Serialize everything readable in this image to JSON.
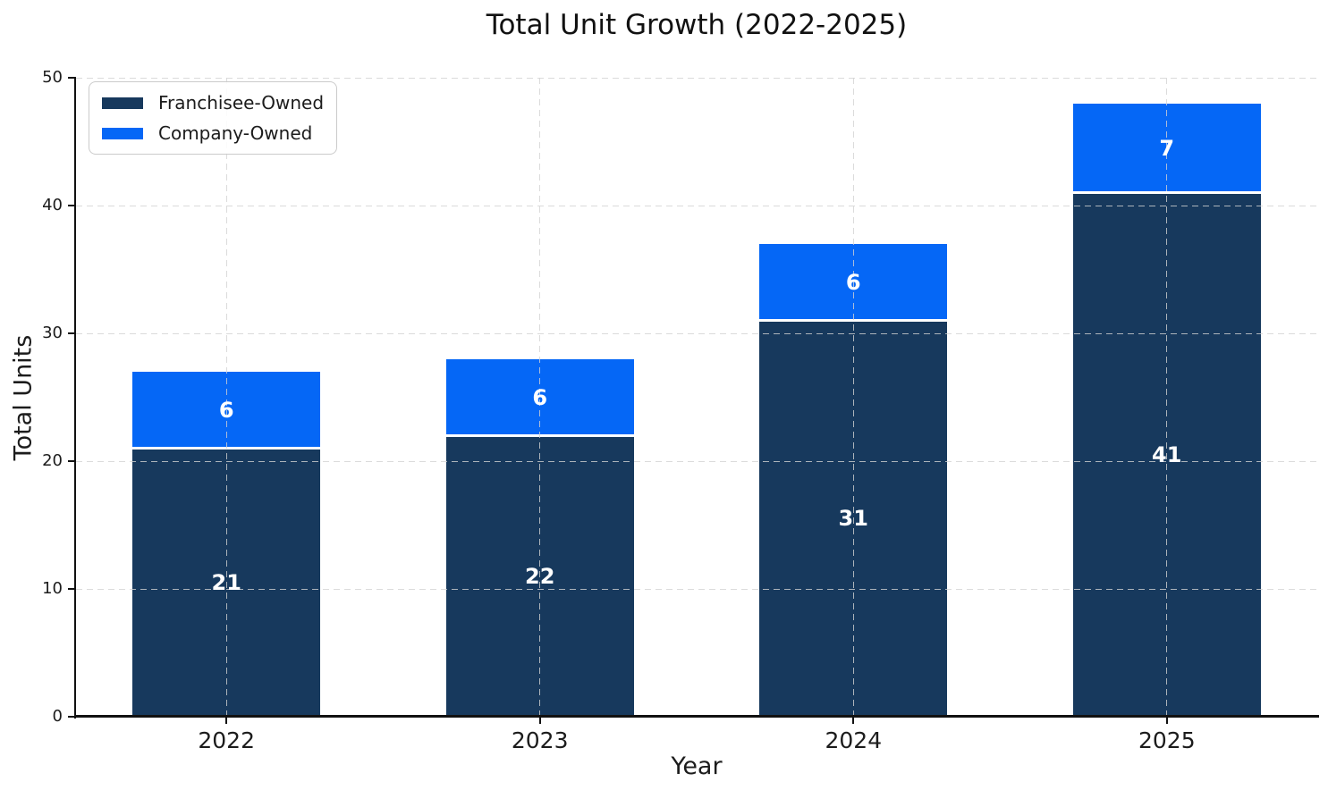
{
  "chart_data": {
    "type": "bar",
    "stacked": true,
    "title": "Total Unit Growth (2022-2025)",
    "xlabel": "Year",
    "ylabel": "Total Units",
    "categories": [
      "2022",
      "2023",
      "2024",
      "2025"
    ],
    "series": [
      {
        "name": "Franchisee-Owned",
        "color": "#17395D",
        "values": [
          21,
          22,
          31,
          41
        ]
      },
      {
        "name": "Company-Owned",
        "color": "#0567F6",
        "values": [
          6,
          6,
          6,
          7
        ]
      }
    ],
    "ylim": [
      0,
      50
    ],
    "yticks": [
      0,
      10,
      20,
      30,
      40,
      50
    ],
    "grid": "dashed-both-axes-over-bars",
    "legend_position": "upper-left",
    "value_labels": "white-bold-centered-in-segment"
  },
  "style": {
    "background": "#ffffff",
    "axis_color": "#111111",
    "text_color": "#1c1c1c",
    "grid_color": "#d2d2d2",
    "bar_label_color": "#ffffff",
    "separator_color": "#ffffff",
    "legend_border_color": "#cbcbcb"
  }
}
